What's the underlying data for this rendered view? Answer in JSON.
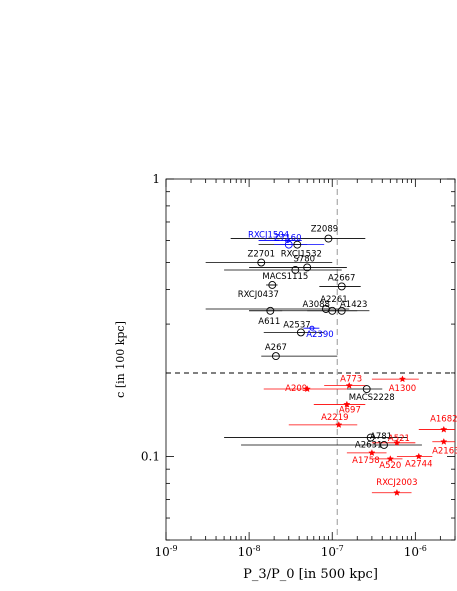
{
  "chart_data": {
    "type": "scatter",
    "title": "",
    "xlabel": "P_3/P_0 [in 500 kpc]",
    "ylabel": "c [in 100 kpc]",
    "xscale": "log",
    "yscale": "log",
    "xlim": [
      1e-09,
      3e-06
    ],
    "ylim": [
      0.05,
      1.0
    ],
    "x_ticks": [
      {
        "value": 1e-09,
        "base": "10",
        "exp": "-9"
      },
      {
        "value": 1e-08,
        "base": "10",
        "exp": "-8"
      },
      {
        "value": 1e-07,
        "base": "10",
        "exp": "-7"
      },
      {
        "value": 1e-06,
        "base": "10",
        "exp": "-6"
      }
    ],
    "y_ticks": [
      {
        "value": 0.1,
        "label": "0.1"
      },
      {
        "value": 1.0,
        "label": "1"
      }
    ],
    "thresholds": {
      "c_ref": 0.2,
      "p3p0_ref": 1.15e-07
    },
    "colors": {
      "relaxed": "#000000",
      "disturbed": "#ff0000",
      "blue": "#0000ff",
      "ref_h": "#000000",
      "ref_v": "#aaaaaa"
    },
    "series": [
      {
        "group": "relaxed",
        "color": "#000000",
        "marker": "open-circle",
        "points": [
          {
            "name": "Z2089",
            "x": 9e-08,
            "y": 0.61,
            "xerr": [
              6e-09,
              2.5e-07
            ]
          },
          {
            "name": "RXCJ1532",
            "x": 3.8e-08,
            "y": 0.58,
            "xerr": [
              1.3e-08,
              5e-08
            ]
          },
          {
            "name": "Z2701",
            "x": 1.4e-08,
            "y": 0.5,
            "xerr": [
              3e-09,
              1e-07
            ]
          },
          {
            "name": "S780",
            "x": 5e-08,
            "y": 0.48,
            "xerr": [
              1e-08,
              1.5e-07
            ]
          },
          {
            "name": "MACS1115",
            "x": 3.6e-08,
            "y": 0.47,
            "xerr": [
              5e-09,
              1.3e-07
            ]
          },
          {
            "name": "A2667",
            "x": 1.3e-07,
            "y": 0.41,
            "xerr": [
              7e-08,
              2.2e-07
            ]
          },
          {
            "name": "RXCJ0437",
            "x": 1.9e-08,
            "y": 0.415,
            "xerr": [
              1.6e-08,
              2.2e-08
            ]
          },
          {
            "name": "A2261",
            "x": 8.4e-08,
            "y": 0.34,
            "xerr": [
              3e-09,
              1.6e-07
            ]
          },
          {
            "name": "A3088",
            "x": 1e-07,
            "y": 0.335,
            "xerr": [
              1e-08,
              2e-07
            ]
          },
          {
            "name": "A1423",
            "x": 1.3e-07,
            "y": 0.335,
            "xerr": [
              5e-08,
              2.8e-07
            ]
          },
          {
            "name": "A611",
            "x": 1.8e-08,
            "y": 0.335,
            "xerr": [
              1e-08,
              2.5e-08
            ]
          },
          {
            "name": "A2537",
            "x": 4.2e-08,
            "y": 0.28,
            "xerr": [
              1.5e-08,
              8e-08
            ]
          },
          {
            "name": "A267",
            "x": 2.1e-08,
            "y": 0.23,
            "xerr": [
              1.4e-08,
              1.15e-07
            ]
          },
          {
            "name": "MACS2228",
            "x": 2.6e-07,
            "y": 0.175,
            "xerr": [
              1.5e-07,
              4e-07
            ]
          },
          {
            "name": "A2631",
            "x": 2.9e-07,
            "y": 0.117,
            "xerr": [
              5e-09,
              8e-07
            ]
          },
          {
            "name": "A781",
            "x": 4.2e-07,
            "y": 0.11,
            "xerr": [
              8e-09,
              1.2e-06
            ]
          }
        ]
      },
      {
        "group": "blue",
        "color": "#0000ff",
        "marker": "open-circle",
        "points": [
          {
            "name": "RXCJ1504",
            "x": 2.9e-08,
            "y": 0.6,
            "xerr": [
              1.3e-08,
              4.3e-08
            ]
          },
          {
            "name": "Z7160",
            "x": 3e-08,
            "y": 0.58,
            "xerr": [
              2e-08,
              8e-08
            ]
          },
          {
            "name": "A2390",
            "x": 5.7e-08,
            "y": 0.29,
            "xerr": [
              4.5e-08,
              7e-08
            ]
          }
        ]
      },
      {
        "group": "disturbed",
        "color": "#ff0000",
        "marker": "filled-star",
        "points": [
          {
            "name": "A773",
            "x": 1.6e-07,
            "y": 0.18,
            "xerr": [
              8e-08,
              2.6e-07
            ]
          },
          {
            "name": "A209",
            "x": 5e-08,
            "y": 0.175,
            "xerr": [
              1.5e-08,
              1.5e-07
            ]
          },
          {
            "name": "A1300",
            "x": 7e-07,
            "y": 0.19,
            "xerr": [
              3e-07,
              1.1e-06
            ]
          },
          {
            "name": "A697",
            "x": 1.5e-07,
            "y": 0.154,
            "xerr": [
              6e-08,
              2.5e-07
            ]
          },
          {
            "name": "A2219",
            "x": 1.2e-07,
            "y": 0.13,
            "xerr": [
              3e-08,
              2e-07
            ]
          },
          {
            "name": "A1682",
            "x": 2.2e-06,
            "y": 0.125,
            "xerr": [
              1.1e-06,
              3e-06
            ]
          },
          {
            "name": "A2163",
            "x": 2.2e-06,
            "y": 0.113,
            "xerr": [
              1.6e-06,
              3e-06
            ]
          },
          {
            "name": "A521",
            "x": 6e-07,
            "y": 0.112,
            "xerr": [
              3e-07,
              1e-06
            ]
          },
          {
            "name": "A1758",
            "x": 3e-07,
            "y": 0.103,
            "xerr": [
              1.5e-07,
              4.5e-07
            ]
          },
          {
            "name": "A520",
            "x": 5e-07,
            "y": 0.098,
            "xerr": [
              3e-07,
              7e-07
            ]
          },
          {
            "name": "A2744",
            "x": 1.1e-06,
            "y": 0.1,
            "xerr": [
              6e-07,
              1.6e-06
            ]
          },
          {
            "name": "RXCJ2003",
            "x": 6e-07,
            "y": 0.074,
            "xerr": [
              3e-07,
              9e-07
            ]
          }
        ]
      }
    ]
  }
}
